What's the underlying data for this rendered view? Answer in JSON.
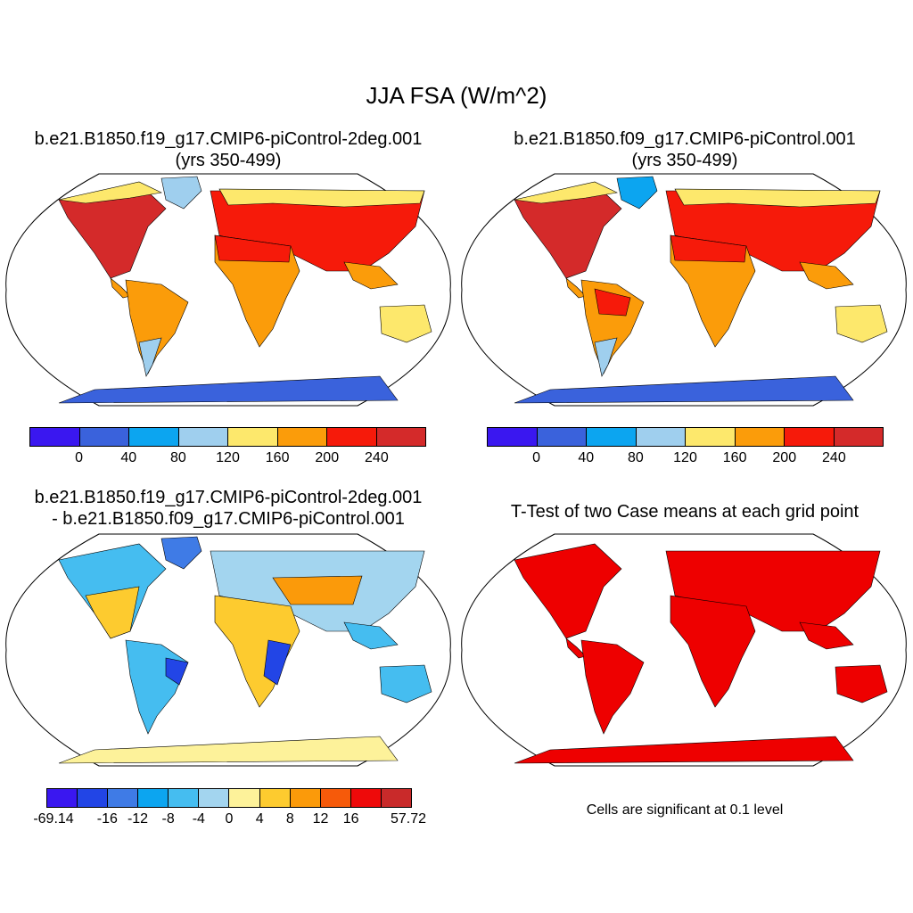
{
  "title": "JJA FSA (W/m^2)",
  "panels": [
    {
      "id": "p1",
      "title_line1": "b.e21.B1850.f19_g17.CMIP6-piControl-2deg.001",
      "title_line2": "(yrs 350-499)"
    },
    {
      "id": "p2",
      "title_line1": "b.e21.B1850.f09_g17.CMIP6-piControl.001",
      "title_line2": "(yrs 350-499)"
    },
    {
      "id": "p3",
      "title_line1": "b.e21.B1850.f19_g17.CMIP6-piControl-2deg.001",
      "title_line2": "- b.e21.B1850.f09_g17.CMIP6-piControl.001"
    },
    {
      "id": "p4",
      "title_line1": "T-Test of two Case means at each grid point",
      "title_line2": ""
    }
  ],
  "colorbars": {
    "fsa": {
      "colors": [
        "#3a17f0",
        "#3a62dc",
        "#0ca5f0",
        "#9fcfee",
        "#fde86c",
        "#fb9c0a",
        "#f61a0a",
        "#d42a2a"
      ],
      "labels": [
        "0",
        "40",
        "80",
        "120",
        "160",
        "200",
        "240"
      ]
    },
    "diff": {
      "colors": [
        "#3a17f0",
        "#2245e6",
        "#3f7be6",
        "#0ca5f0",
        "#45bdf0",
        "#a3d5ef",
        "#fdf29a",
        "#fdcb2f",
        "#fb9a0a",
        "#f65a0a",
        "#ee0a0a",
        "#c92a2a"
      ],
      "labels": [
        "-69.14",
        "-16",
        "-12",
        "-8",
        "-4",
        "0",
        "4",
        "8",
        "12",
        "16",
        "57.72"
      ]
    }
  },
  "significance_color": "#ee0000",
  "note": "Cells are significant at 0.1 level"
}
